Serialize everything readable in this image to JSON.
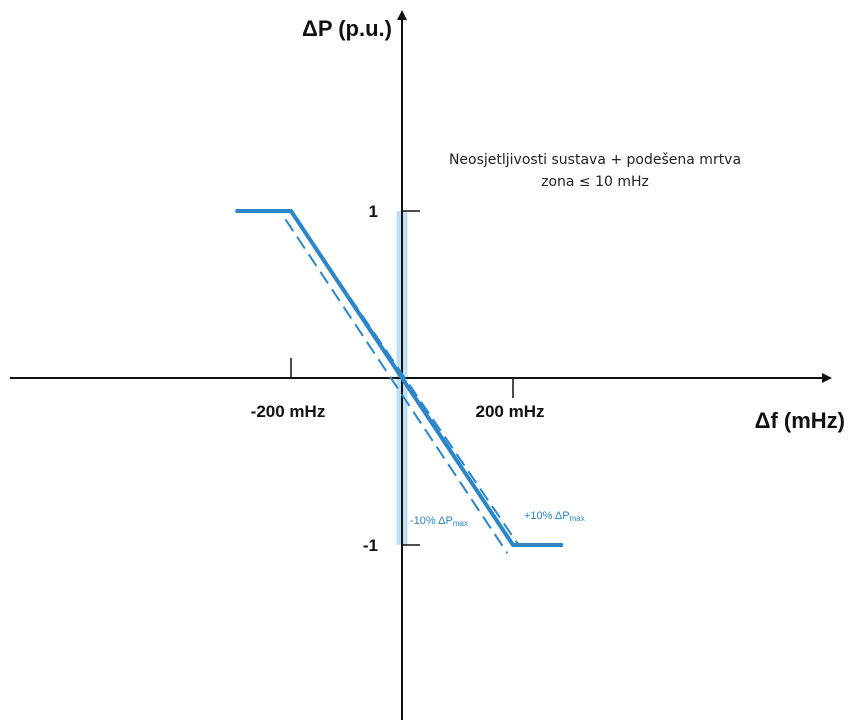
{
  "chart_data": {
    "type": "line",
    "title": "",
    "xlabel": "Δf (mHz)",
    "ylabel": "ΔP (p.u.)",
    "xlim": [
      -400,
      400
    ],
    "ylim": [
      -1.8,
      1.8
    ],
    "x_tick_labels": [
      "-200 mHz",
      "200 mHz"
    ],
    "y_tick_labels": [
      "1",
      "-1"
    ],
    "series": [
      {
        "x": [
          -300,
          -200,
          200,
          290
        ],
        "y": [
          1,
          1,
          -1,
          -1
        ],
        "style": "solid"
      },
      {
        "x": [
          -200,
          210
        ],
        "y": [
          1,
          -1
        ],
        "style": "dashed"
      },
      {
        "x": [
          -210,
          190
        ],
        "y": [
          0.95,
          -1.05
        ],
        "style": "dashed"
      }
    ],
    "dead_band": {
      "x": [
        -10,
        10
      ],
      "y": [
        -1,
        1
      ]
    },
    "annotations": {
      "dead_band_line1": "Neosjetljivosti sustava + podešena mrtva",
      "dead_band_line2": "zona ≤ 10 mHz",
      "minus_tol_main": "-10% ΔP",
      "minus_tol_sub": "max",
      "plus_tol_main": "+10% ΔP",
      "plus_tol_sub": "max"
    },
    "colors": {
      "axis": "#111111",
      "series": "#2a86c8",
      "dead_band": "#8cc4ea"
    },
    "grid": false
  }
}
